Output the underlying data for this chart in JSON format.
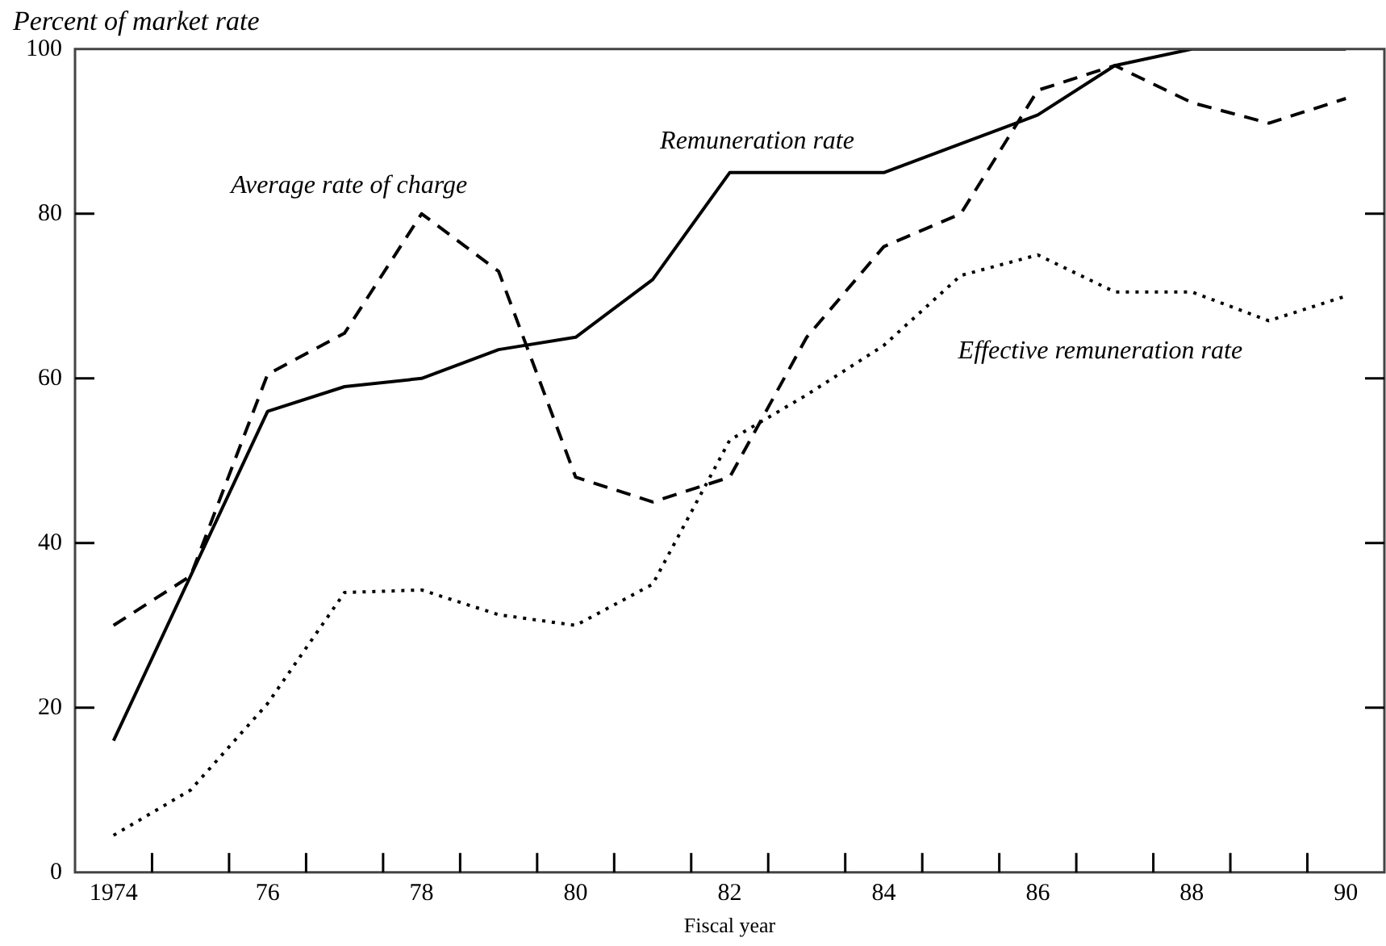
{
  "chart_data": {
    "type": "line",
    "title": "Percent of market rate",
    "xlabel": "Fiscal year",
    "categories": [
      "1974",
      null,
      "76",
      null,
      "78",
      null,
      "80",
      null,
      "82",
      null,
      "84",
      null,
      "86",
      null,
      "88",
      null,
      "90"
    ],
    "ylim": [
      0,
      100
    ],
    "yticks": [
      0,
      20,
      40,
      60,
      80,
      100
    ],
    "grid": false,
    "legend": false,
    "marker": "none",
    "series": [
      {
        "name": "Remuneration rate",
        "color": "#000000",
        "line_style": "solid",
        "values": [
          16,
          36,
          56,
          59,
          60,
          63.5,
          65,
          72,
          85,
          85,
          85,
          88.5,
          92,
          98,
          100,
          100,
          100
        ]
      },
      {
        "name": "Average rate of charge",
        "color": "#000000",
        "line_style": "dashed",
        "values": [
          30,
          36,
          60.5,
          65.5,
          80,
          73,
          48,
          45,
          48,
          65,
          76,
          80,
          95,
          98,
          93.5,
          91,
          94
        ]
      },
      {
        "name": "Effective remuneration rate",
        "color": "#000000",
        "line_style": "dotted",
        "values": [
          4.5,
          10,
          20.5,
          34,
          34.3,
          31.3,
          30,
          35,
          52.5,
          58,
          64,
          72.5,
          75,
          70.5,
          70.5,
          67,
          70
        ]
      }
    ]
  }
}
